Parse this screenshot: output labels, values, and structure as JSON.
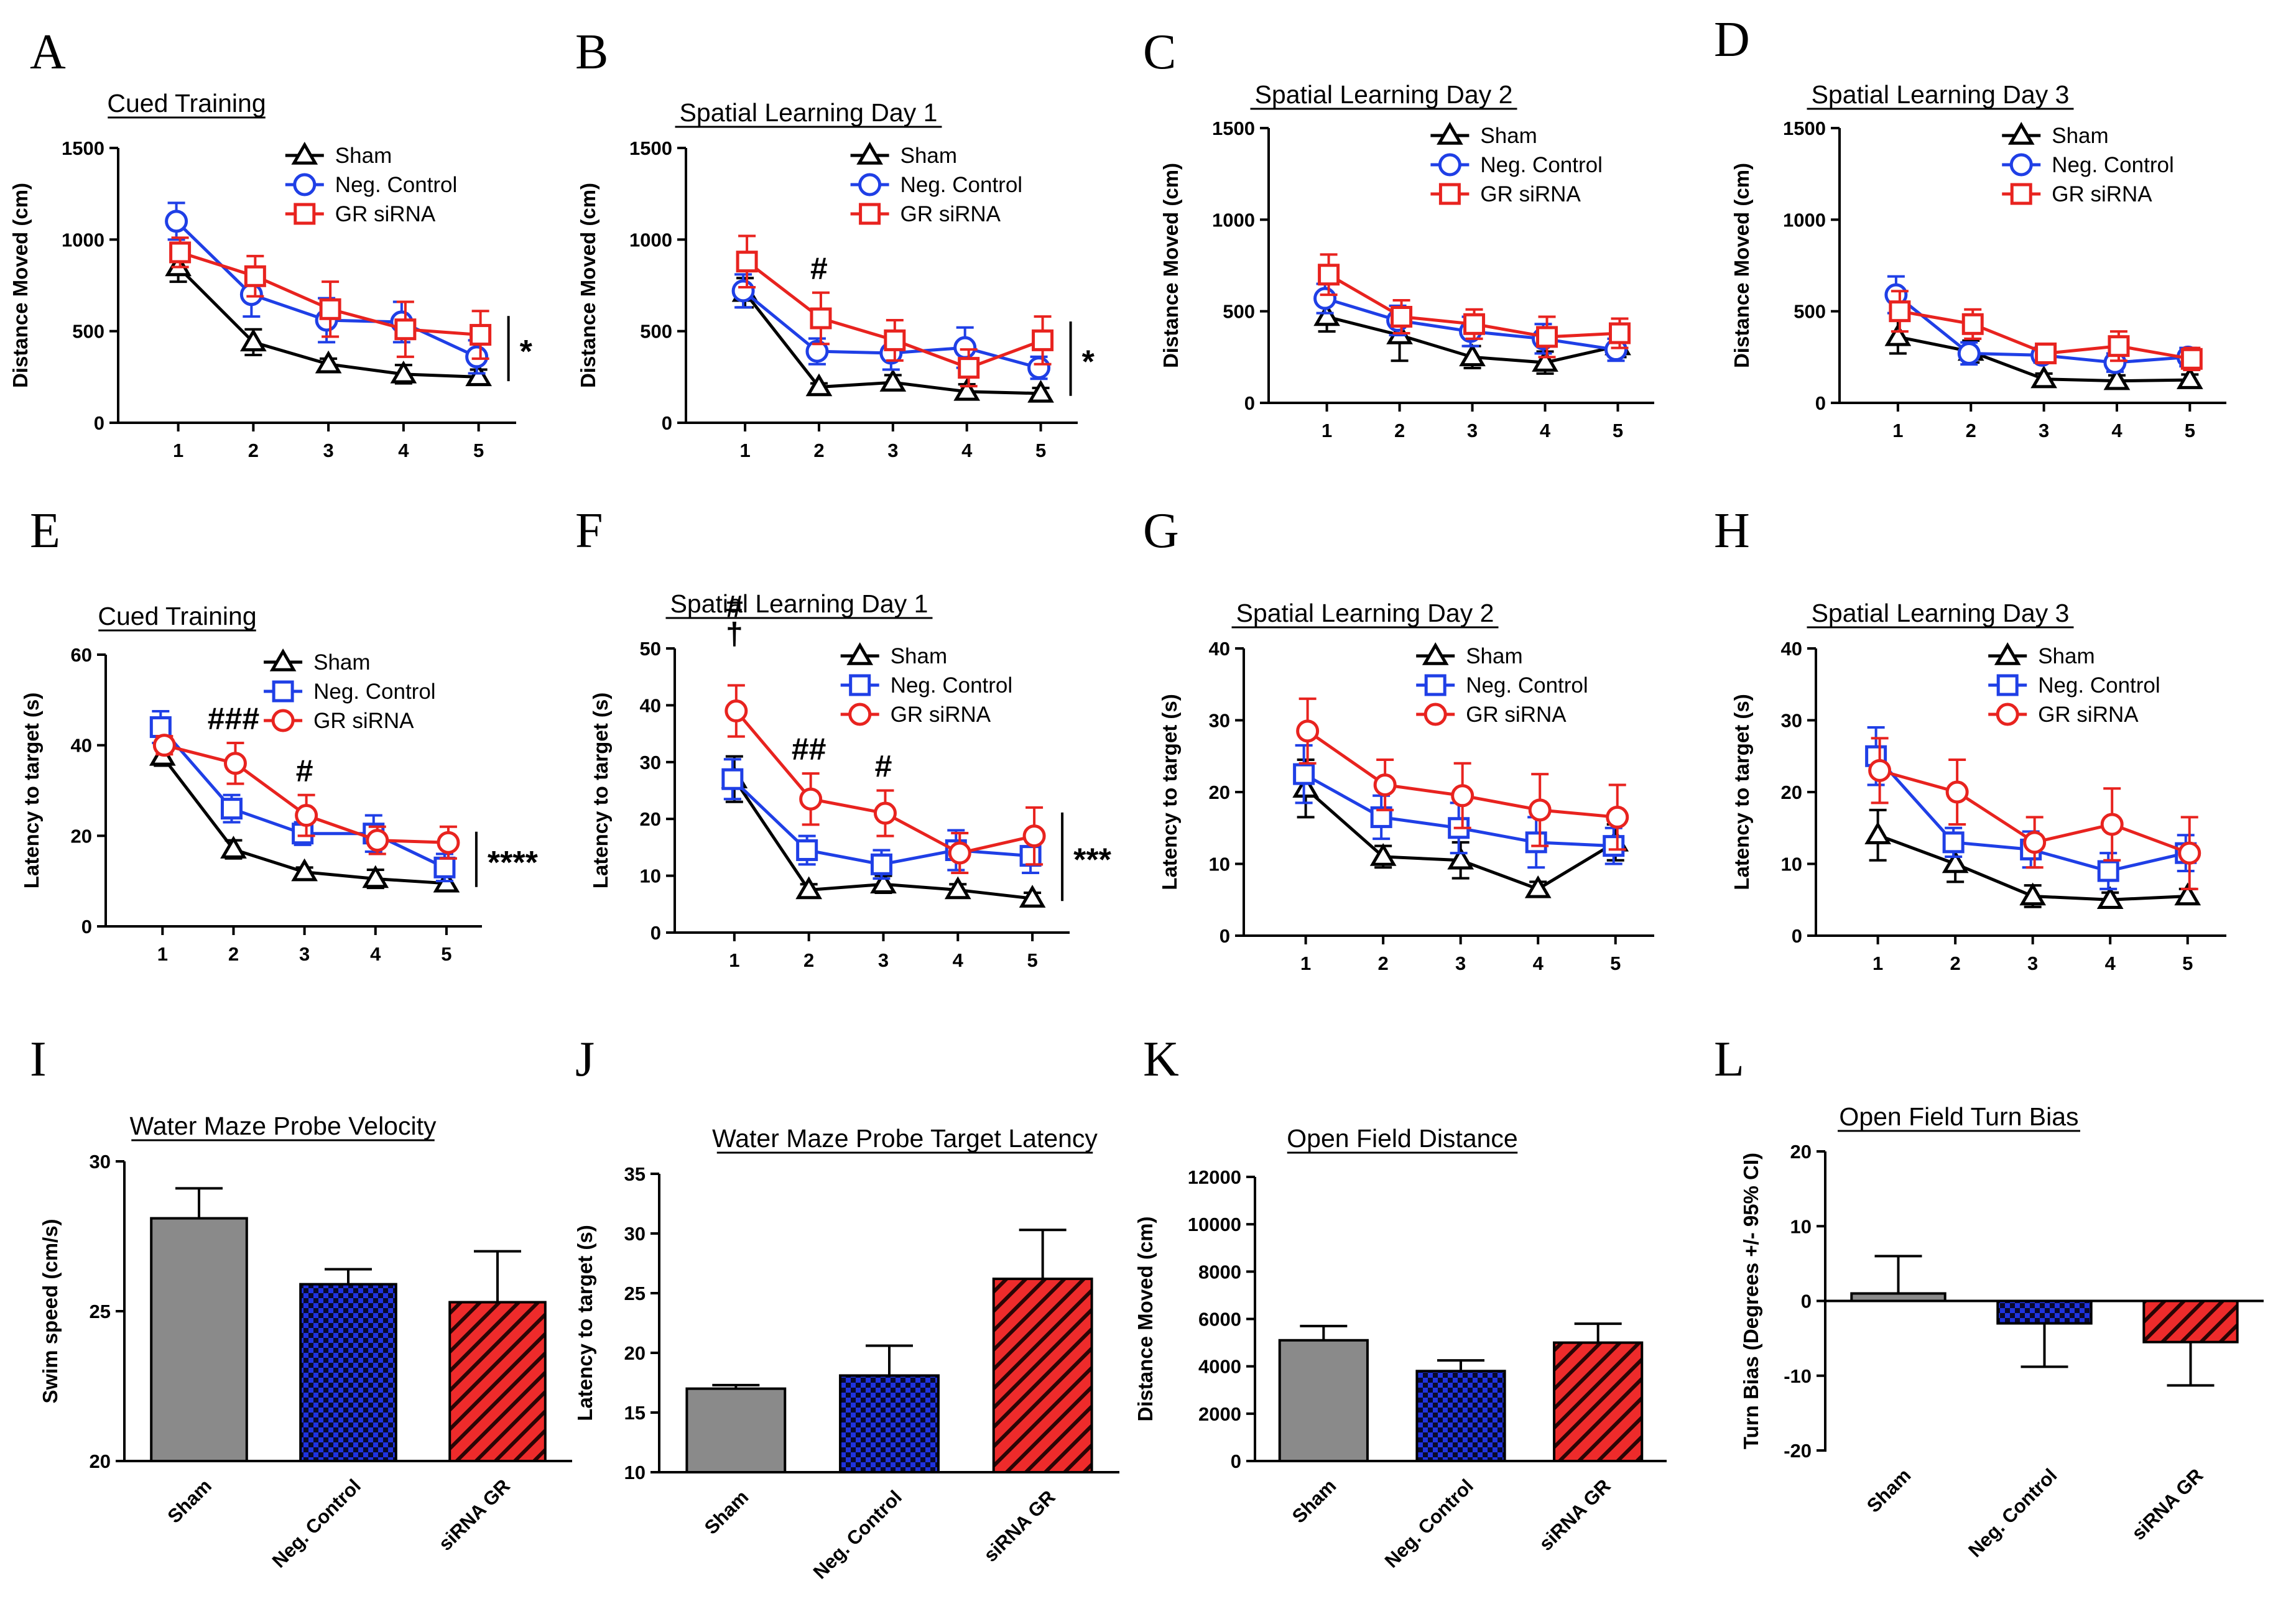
{
  "figure": {
    "colors": {
      "sham": "#000000",
      "neg": "#1f3fe6",
      "gr": "#e8231f",
      "bar_gray": "#8a8a8a",
      "axis": "#000000"
    }
  },
  "chart_data": [
    {
      "id": "A",
      "panel_label": "A",
      "type": "line",
      "title": "Cued Training",
      "xlabel": "",
      "ylabel": "Distance Moved (cm)",
      "categories": [
        "1",
        "2",
        "3",
        "4",
        "5"
      ],
      "ylim": [
        0,
        1500
      ],
      "yticks": [
        0,
        500,
        1000,
        1500
      ],
      "series": [
        {
          "name": "Sham",
          "key": "sham",
          "marker": "triangle",
          "values": [
            850,
            440,
            320,
            265,
            250
          ],
          "errors": [
            80,
            70,
            30,
            50,
            40
          ]
        },
        {
          "name": "Neg. Control",
          "key": "neg",
          "marker": "circle",
          "values": [
            1100,
            700,
            560,
            550,
            360
          ],
          "errors": [
            100,
            120,
            120,
            110,
            90
          ]
        },
        {
          "name": "GR siRNA",
          "key": "gr",
          "marker": "square",
          "values": [
            930,
            800,
            620,
            510,
            480
          ],
          "errors": [
            80,
            110,
            150,
            150,
            130
          ]
        }
      ],
      "annotations": [
        {
          "text": "*",
          "kind": "bracket",
          "x_from": 0
        }
      ],
      "legend": "top-right"
    },
    {
      "id": "B",
      "panel_label": "B",
      "type": "line",
      "title": "Spatial Learning Day 1",
      "xlabel": "",
      "ylabel": "Distance Moved (cm)",
      "categories": [
        "1",
        "2",
        "3",
        "4",
        "5"
      ],
      "ylim": [
        0,
        1500
      ],
      "yticks": [
        0,
        500,
        1000,
        1500
      ],
      "series": [
        {
          "name": "Sham",
          "key": "sham",
          "marker": "triangle",
          "values": [
            710,
            195,
            220,
            170,
            160
          ],
          "errors": [
            80,
            20,
            40,
            40,
            30
          ]
        },
        {
          "name": "Neg. Control",
          "key": "neg",
          "marker": "circle",
          "values": [
            720,
            390,
            380,
            410,
            300
          ],
          "errors": [
            90,
            70,
            90,
            110,
            60
          ]
        },
        {
          "name": "GR siRNA",
          "key": "gr",
          "marker": "square",
          "values": [
            880,
            570,
            450,
            300,
            450
          ],
          "errors": [
            140,
            140,
            110,
            100,
            130
          ]
        }
      ],
      "annotations": [
        {
          "text": "#",
          "kind": "above",
          "index": 1
        },
        {
          "text": "*",
          "kind": "bracket"
        }
      ],
      "legend": "top-right"
    },
    {
      "id": "C",
      "panel_label": "C",
      "type": "line",
      "title": "Spatial Learning Day 2",
      "xlabel": "",
      "ylabel": "Distance Moved (cm)",
      "categories": [
        "1",
        "2",
        "3",
        "4",
        "5"
      ],
      "ylim": [
        0,
        1500
      ],
      "yticks": [
        0,
        500,
        1000,
        1500
      ],
      "series": [
        {
          "name": "Sham",
          "key": "sham",
          "marker": "triangle",
          "values": [
            470,
            370,
            250,
            220,
            310
          ],
          "errors": [
            80,
            140,
            60,
            60,
            60
          ]
        },
        {
          "name": "Neg. Control",
          "key": "neg",
          "marker": "circle",
          "values": [
            570,
            450,
            390,
            350,
            290
          ],
          "errors": [
            80,
            80,
            80,
            80,
            60
          ]
        },
        {
          "name": "GR siRNA",
          "key": "gr",
          "marker": "square",
          "values": [
            700,
            470,
            430,
            360,
            380
          ],
          "errors": [
            110,
            90,
            80,
            110,
            80
          ]
        }
      ],
      "annotations": [],
      "legend": "top-right"
    },
    {
      "id": "D",
      "panel_label": "D",
      "type": "line",
      "title": "Spatial Learning Day 3",
      "xlabel": "",
      "ylabel": "Distance Moved (cm)",
      "categories": [
        "1",
        "2",
        "3",
        "4",
        "5"
      ],
      "ylim": [
        0,
        1500
      ],
      "yticks": [
        0,
        500,
        1000,
        1500
      ],
      "series": [
        {
          "name": "Sham",
          "key": "sham",
          "marker": "triangle",
          "values": [
            360,
            280,
            130,
            120,
            125
          ],
          "errors": [
            90,
            60,
            30,
            30,
            30
          ]
        },
        {
          "name": "Neg. Control",
          "key": "neg",
          "marker": "circle",
          "values": [
            590,
            270,
            260,
            220,
            250
          ],
          "errors": [
            100,
            60,
            40,
            50,
            50
          ]
        },
        {
          "name": "GR siRNA",
          "key": "gr",
          "marker": "square",
          "values": [
            500,
            430,
            270,
            310,
            240
          ],
          "errors": [
            110,
            80,
            50,
            80,
            60
          ]
        }
      ],
      "annotations": [],
      "legend": "top-right"
    },
    {
      "id": "E",
      "panel_label": "E",
      "type": "line",
      "title": "Cued Training",
      "xlabel": "",
      "ylabel": "Latency to target (s)",
      "categories": [
        "1",
        "2",
        "3",
        "4",
        "5"
      ],
      "ylim": [
        0,
        60
      ],
      "yticks": [
        0,
        20,
        40,
        60
      ],
      "series": [
        {
          "name": "Sham",
          "key": "sham",
          "marker": "triangle",
          "values": [
            37.5,
            17,
            12,
            10.5,
            9.5
          ],
          "errors": [
            2,
            2,
            1,
            2,
            1.5
          ]
        },
        {
          "name": "Neg. Control",
          "key": "neg",
          "marker": "square",
          "values": [
            44,
            26,
            20.5,
            20.5,
            13
          ],
          "errors": [
            3.5,
            3,
            2.5,
            4,
            3
          ]
        },
        {
          "name": "GR siRNA",
          "key": "gr",
          "marker": "circle",
          "values": [
            40,
            36,
            24.5,
            19,
            18.5
          ],
          "errors": [
            2,
            4.5,
            4.5,
            3,
            3.5
          ]
        }
      ],
      "annotations": [
        {
          "text": "###",
          "kind": "above",
          "index": 1
        },
        {
          "text": "#",
          "kind": "above",
          "index": 2
        },
        {
          "text": "****",
          "kind": "bracket"
        }
      ],
      "legend": "top-right"
    },
    {
      "id": "F",
      "panel_label": "F",
      "type": "line",
      "title": "Spatial Learning Day 1",
      "xlabel": "",
      "ylabel": "Latency to target (s)",
      "categories": [
        "1",
        "2",
        "3",
        "4",
        "5"
      ],
      "ylim": [
        0,
        50
      ],
      "yticks": [
        0,
        10,
        20,
        30,
        40,
        50
      ],
      "series": [
        {
          "name": "Sham",
          "key": "sham",
          "marker": "triangle",
          "values": [
            27,
            7.5,
            8.5,
            7.5,
            6
          ],
          "errors": [
            4,
            1,
            1.5,
            1,
            1
          ]
        },
        {
          "name": "Neg. Control",
          "key": "neg",
          "marker": "square",
          "values": [
            27,
            14.5,
            12,
            14.5,
            13.5
          ],
          "errors": [
            3.5,
            2.5,
            2.5,
            3.5,
            3
          ]
        },
        {
          "name": "GR siRNA",
          "key": "gr",
          "marker": "circle",
          "values": [
            39,
            23.5,
            21,
            14,
            17
          ],
          "errors": [
            4.5,
            4.5,
            4,
            3.5,
            5
          ]
        }
      ],
      "annotations": [
        {
          "text": "#",
          "kind": "above",
          "index": 0,
          "offset": 2
        },
        {
          "text": "†",
          "kind": "above",
          "index": 0,
          "offset": 1
        },
        {
          "text": "##",
          "kind": "above",
          "index": 1
        },
        {
          "text": "#",
          "kind": "above",
          "index": 2
        },
        {
          "text": "***",
          "kind": "bracket"
        }
      ],
      "legend": "top-right"
    },
    {
      "id": "G",
      "panel_label": "G",
      "type": "line",
      "title": "Spatial Learning Day 2",
      "xlabel": "",
      "ylabel": "Latency to target (s)",
      "categories": [
        "1",
        "2",
        "3",
        "4",
        "5"
      ],
      "ylim": [
        0,
        40
      ],
      "yticks": [
        0,
        10,
        20,
        30,
        40
      ],
      "series": [
        {
          "name": "Sham",
          "key": "sham",
          "marker": "triangle",
          "values": [
            20.5,
            11,
            10.5,
            6.5,
            13
          ],
          "errors": [
            4,
            1.5,
            2.5,
            1,
            2.5
          ]
        },
        {
          "name": "Neg. Control",
          "key": "neg",
          "marker": "square",
          "values": [
            22.5,
            16.5,
            15,
            13,
            12.5
          ],
          "errors": [
            4,
            3,
            3.5,
            3.5,
            2.5
          ]
        },
        {
          "name": "GR siRNA",
          "key": "gr",
          "marker": "circle",
          "values": [
            28.5,
            21,
            19.5,
            17.5,
            16.5
          ],
          "errors": [
            4.5,
            3.5,
            4.5,
            5,
            4.5
          ]
        }
      ],
      "annotations": [],
      "legend": "top-right"
    },
    {
      "id": "H",
      "panel_label": "H",
      "type": "line",
      "title": "Spatial Learning Day 3",
      "xlabel": "",
      "ylabel": "Latency to target (s)",
      "categories": [
        "1",
        "2",
        "3",
        "4",
        "5"
      ],
      "ylim": [
        0,
        40
      ],
      "yticks": [
        0,
        10,
        20,
        30,
        40
      ],
      "series": [
        {
          "name": "Sham",
          "key": "sham",
          "marker": "triangle",
          "values": [
            14,
            10,
            5.5,
            5,
            5.5
          ],
          "errors": [
            3.5,
            2.5,
            1.5,
            1,
            1
          ]
        },
        {
          "name": "Neg. Control",
          "key": "neg",
          "marker": "square",
          "values": [
            25,
            13,
            12,
            9,
            11.5
          ],
          "errors": [
            4,
            2,
            2.5,
            2.5,
            2.5
          ]
        },
        {
          "name": "GR siRNA",
          "key": "gr",
          "marker": "circle",
          "values": [
            23,
            20,
            13,
            15.5,
            11.5
          ],
          "errors": [
            4.5,
            4.5,
            3.5,
            5,
            5
          ]
        }
      ],
      "annotations": [],
      "legend": "top-right"
    },
    {
      "id": "I",
      "panel_label": "I",
      "type": "bar",
      "title": "Water Maze Probe Velocity",
      "xlabel": "",
      "ylabel": "Swim speed  (cm/s)",
      "categories": [
        "Sham",
        "Neg. Control",
        "siRNA GR"
      ],
      "values": [
        28.1,
        25.9,
        25.3
      ],
      "errors": [
        1.0,
        0.5,
        1.7
      ],
      "ylim": [
        20,
        30
      ],
      "yticks": [
        20,
        25,
        30
      ]
    },
    {
      "id": "J",
      "panel_label": "J",
      "type": "bar",
      "title": "Water Maze Probe Target Latency",
      "xlabel": "",
      "ylabel": "Latency to target (s)",
      "categories": [
        "Sham",
        "Neg. Control",
        "siRNA GR"
      ],
      "values": [
        17.0,
        18.1,
        26.2
      ],
      "errors": [
        0.3,
        2.5,
        4.1
      ],
      "ylim": [
        10,
        35
      ],
      "yticks": [
        10,
        15,
        20,
        25,
        30,
        35
      ]
    },
    {
      "id": "K",
      "panel_label": "K",
      "type": "bar",
      "title": "Open Field Distance",
      "xlabel": "",
      "ylabel": "Distance Moved (cm)",
      "categories": [
        "Sham",
        "Neg. Control",
        "siRNA GR"
      ],
      "values": [
        5100,
        3800,
        5000
      ],
      "errors": [
        600,
        450,
        800
      ],
      "ylim": [
        0,
        12000
      ],
      "yticks": [
        0,
        2000,
        4000,
        6000,
        8000,
        10000,
        12000
      ]
    },
    {
      "id": "L",
      "panel_label": "L",
      "type": "bar",
      "title": "Open Field Turn Bias",
      "xlabel": "",
      "ylabel": "Turn Bias (Degrees +/- 95% CI)",
      "categories": [
        "Sham",
        "Neg. Control",
        "siRNA GR"
      ],
      "values": [
        1.0,
        -3.0,
        -5.5
      ],
      "errors": [
        5.0,
        5.8,
        5.8
      ],
      "ylim": [
        -20,
        20
      ],
      "yticks": [
        -20,
        -10,
        0,
        10,
        20
      ]
    }
  ]
}
